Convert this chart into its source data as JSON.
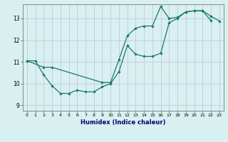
{
  "xlabel": "Humidex (Indice chaleur)",
  "bg_color": "#d8f0f0",
  "grid_color": "#c0c0d8",
  "line_color": "#1a7a6a",
  "xlim": [
    -0.5,
    23.5
  ],
  "ylim": [
    8.75,
    13.65
  ],
  "xticks": [
    0,
    1,
    2,
    3,
    4,
    5,
    6,
    7,
    8,
    9,
    10,
    11,
    12,
    13,
    14,
    15,
    16,
    17,
    18,
    19,
    20,
    21,
    22,
    23
  ],
  "yticks": [
    9,
    10,
    11,
    12,
    13
  ],
  "series1_x": [
    0,
    1,
    2,
    3,
    4,
    5,
    6,
    7,
    8,
    9,
    10,
    11,
    12,
    13,
    14,
    15,
    16,
    17,
    18,
    19,
    20,
    21,
    22
  ],
  "series1_y": [
    11.05,
    11.05,
    10.4,
    9.9,
    9.55,
    9.55,
    9.7,
    9.62,
    9.62,
    9.85,
    10.0,
    10.55,
    11.75,
    11.35,
    11.25,
    11.25,
    11.4,
    12.8,
    13.0,
    13.3,
    13.35,
    13.35,
    12.9
  ],
  "series2_x": [
    0,
    2,
    3,
    9,
    10,
    11,
    12,
    13,
    14,
    15,
    16,
    17,
    18,
    19,
    20,
    21,
    22,
    23
  ],
  "series2_y": [
    11.05,
    10.75,
    10.75,
    10.05,
    10.05,
    11.1,
    12.2,
    12.55,
    12.65,
    12.65,
    13.55,
    13.0,
    13.05,
    13.3,
    13.35,
    13.35,
    13.1,
    12.88
  ]
}
